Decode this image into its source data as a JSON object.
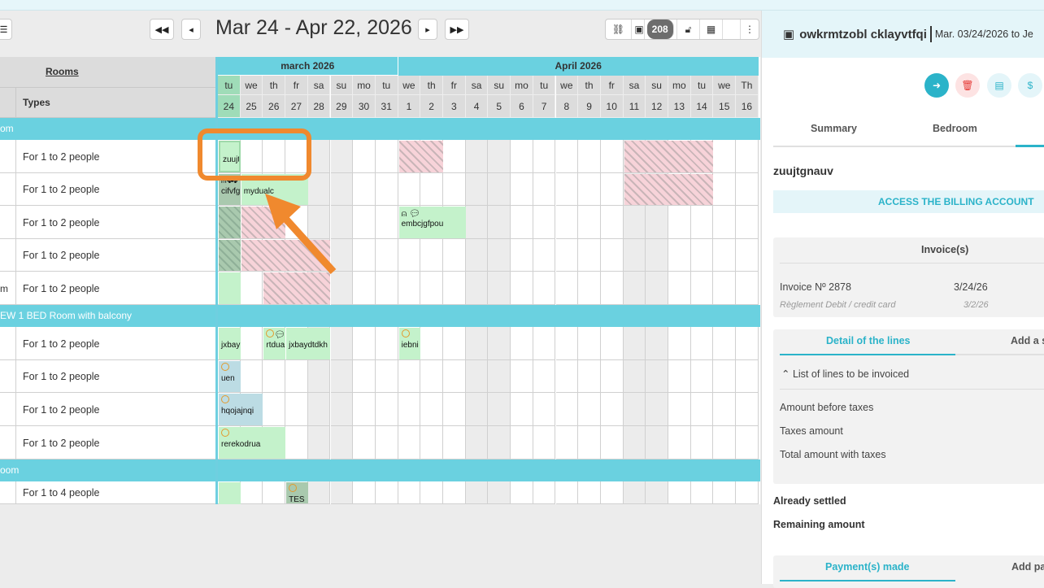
{
  "toolbar": {
    "range": "Mar 24 - Apr 22, 2026",
    "count_badge": "208"
  },
  "left": {
    "rooms_header": "Rooms",
    "types_header": "Types",
    "groups": [
      "om",
      "EW 1 BED Room with balcony",
      "oom"
    ],
    "rows": [
      {
        "room": "",
        "type": "For 1 to 2 people"
      },
      {
        "room": "",
        "type": "For 1 to 2 people"
      },
      {
        "room": "",
        "type": "For 1 to 2 people"
      },
      {
        "room": "",
        "type": "For 1 to 2 people"
      },
      {
        "room": "m",
        "type": "For 1 to 2 people"
      },
      {
        "room": "",
        "type": "For 1 to 2 people"
      },
      {
        "room": "",
        "type": "For 1 to 2 people"
      },
      {
        "room": "",
        "type": "For 1 to 2 people"
      },
      {
        "room": "",
        "type": "For 1 to 2 people"
      },
      {
        "room": "",
        "type": "For 1 to 4 people"
      }
    ]
  },
  "calendar": {
    "months": [
      "march 2026",
      "April 2026"
    ],
    "days": [
      [
        "tu",
        "24"
      ],
      [
        "we",
        "25"
      ],
      [
        "th",
        "26"
      ],
      [
        "fr",
        "27"
      ],
      [
        "sa",
        "28"
      ],
      [
        "su",
        "29"
      ],
      [
        "mo",
        "30"
      ],
      [
        "tu",
        "31"
      ],
      [
        "we",
        "1"
      ],
      [
        "th",
        "2"
      ],
      [
        "fr",
        "3"
      ],
      [
        "sa",
        "4"
      ],
      [
        "su",
        "5"
      ],
      [
        "mo",
        "6"
      ],
      [
        "tu",
        "7"
      ],
      [
        "we",
        "8"
      ],
      [
        "th",
        "9"
      ],
      [
        "fr",
        "10"
      ],
      [
        "sa",
        "11"
      ],
      [
        "su",
        "12"
      ],
      [
        "mo",
        "13"
      ],
      [
        "tu",
        "14"
      ],
      [
        "we",
        "15"
      ],
      [
        "Th",
        "16"
      ]
    ],
    "bookings": [
      "zuujtgnauv",
      "cifvfgmvv",
      "mydualc",
      "embcjgfpou",
      "jxbay",
      "rtdua",
      "jxbaydtdkh",
      "iebni",
      "uen",
      "hqojajnqi",
      "rerekodrua",
      "TES"
    ]
  },
  "panel": {
    "guest": "owkrmtzobl cklayvtfqi",
    "dates": "Mar. 03/24/2026 to Je",
    "tabs": [
      "Summary",
      "Bedroom"
    ],
    "booking_name": "zuujtgnauv",
    "billing_button": "ACCESS THE BILLING ACCOUNT",
    "invoices_title": "Invoice(s)",
    "invoice_no": "Invoice Nº 2878",
    "invoice_date": "3/24/26",
    "payment_method": "Règlement Debit / credit card",
    "payment_date": "3/2/26",
    "lines_tabs": [
      "Detail of the lines",
      "Add a s"
    ],
    "lines_toggle": "List of lines to be invoiced",
    "amount_before": "Amount before taxes",
    "taxes": "Taxes amount",
    "total": "Total amount with taxes",
    "settled": "Already settled",
    "remaining": "Remaining amount",
    "payment_tabs": [
      "Payment(s) made",
      "Add pa"
    ]
  },
  "colors": {
    "accent": "#2bb3c9",
    "group": "#6ad1e0",
    "booking": "#c4f2cb",
    "annotation": "#f0892e"
  }
}
